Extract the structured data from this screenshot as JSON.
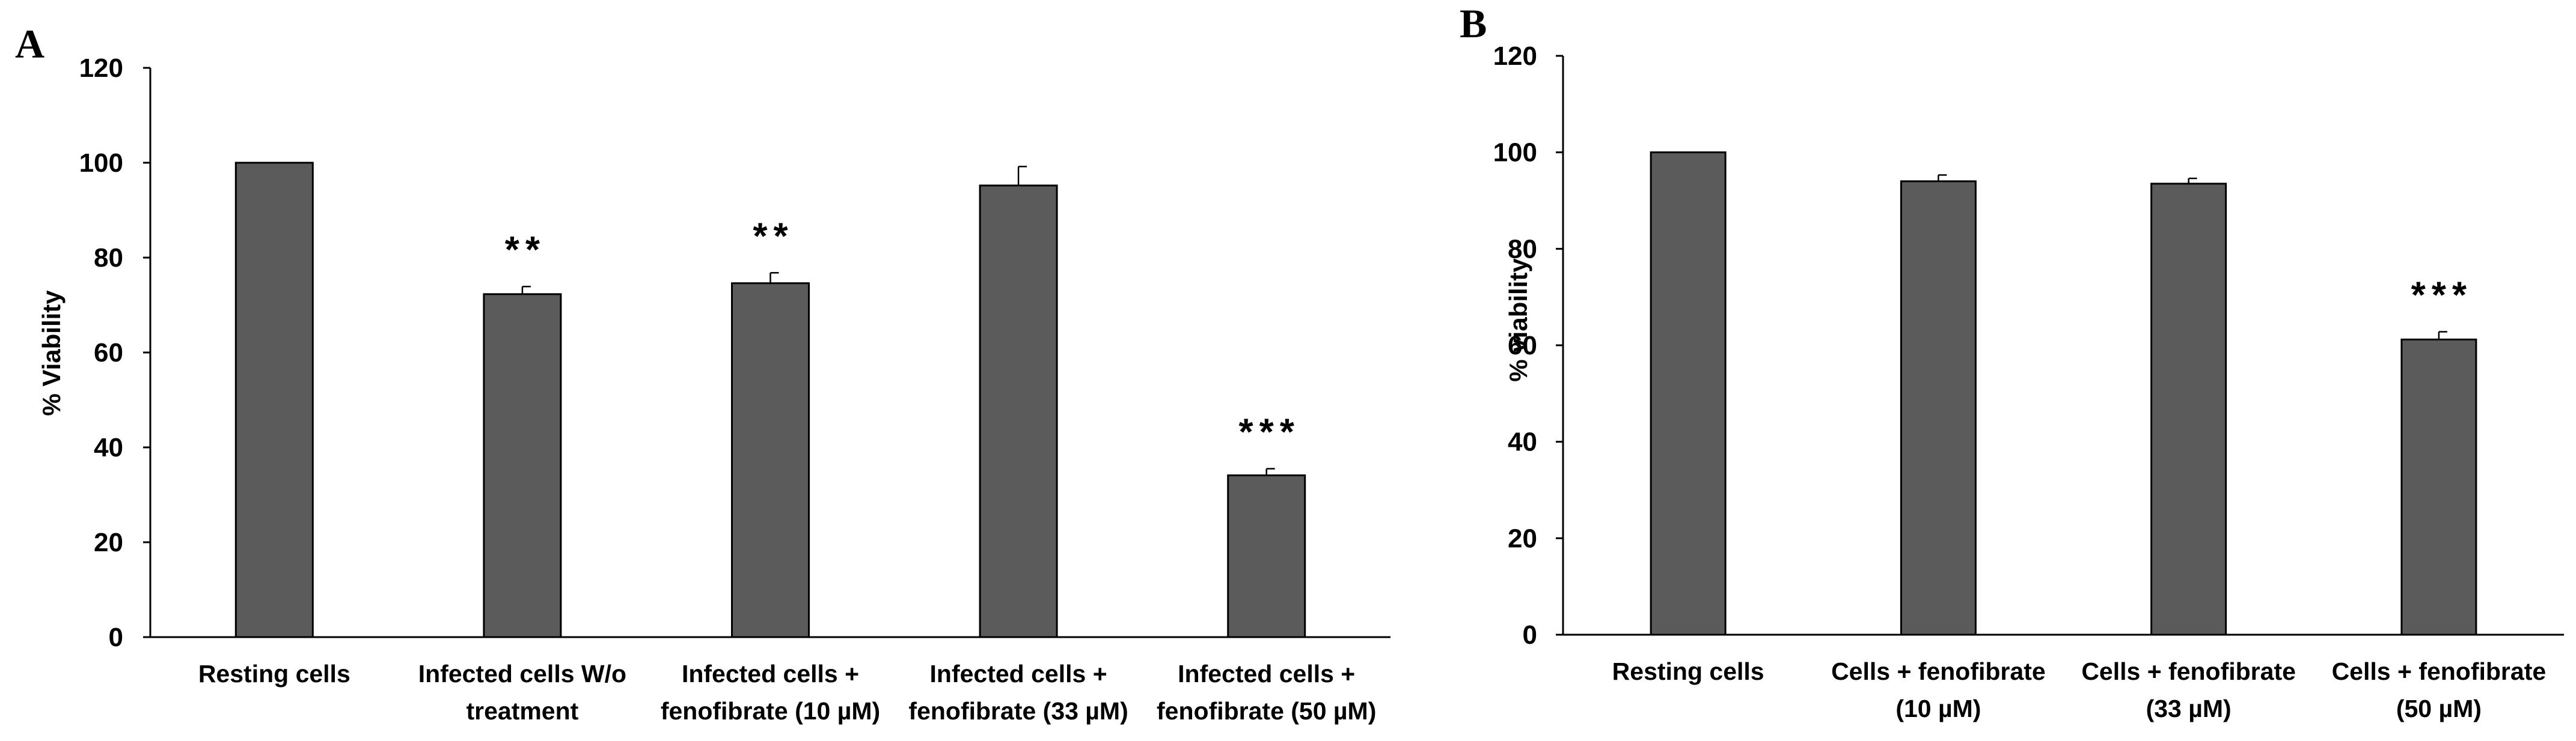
{
  "chart_data": [
    {
      "panel": "A",
      "type": "bar",
      "title": "",
      "xlabel": "",
      "ylabel": "% Viability",
      "ylim": [
        0,
        120
      ],
      "yticks": [
        0,
        20,
        40,
        60,
        80,
        100,
        120
      ],
      "categories": [
        [
          "Resting cells"
        ],
        [
          "Infected cells W/o",
          "treatment"
        ],
        [
          "Infected cells +",
          "fenofibrate (10 µM)"
        ],
        [
          "Infected cells +",
          "fenofibrate (33 µM)"
        ],
        [
          "Infected cells +",
          "fenofibrate (50 µM)"
        ]
      ],
      "values": [
        100,
        72.3,
        74.6,
        95.2,
        34.1
      ],
      "errors": [
        0,
        1.6,
        2.2,
        4.0,
        1.4
      ],
      "significance": [
        "",
        "**",
        "**",
        "",
        "***"
      ],
      "color": "#5b5b5b"
    },
    {
      "panel": "B",
      "type": "bar",
      "title": "",
      "xlabel": "",
      "ylabel": "% viability",
      "ylim": [
        0,
        120
      ],
      "yticks": [
        0,
        20,
        40,
        60,
        80,
        100,
        120
      ],
      "categories": [
        [
          "Resting cells"
        ],
        [
          "Cells + fenofibrate",
          "(10 µM)"
        ],
        [
          "Cells + fenofibrate",
          "(33 µM)"
        ],
        [
          "Cells + fenofibrate",
          "(50 µM)"
        ]
      ],
      "values": [
        100,
        94.0,
        93.5,
        61.2
      ],
      "errors": [
        0,
        1.3,
        1.1,
        1.6
      ],
      "significance": [
        "",
        "",
        "",
        "***"
      ],
      "color": "#5b5b5b"
    }
  ]
}
